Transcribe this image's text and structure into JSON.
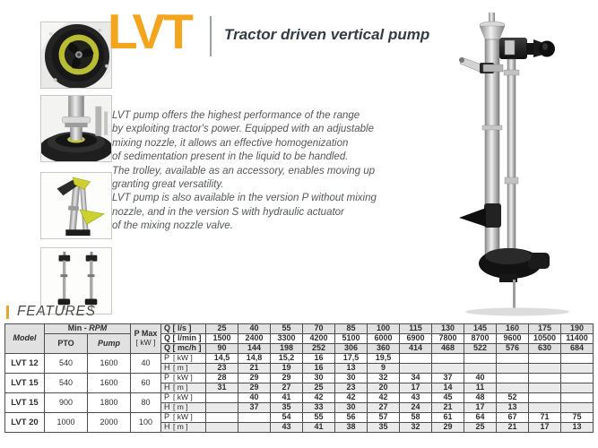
{
  "brand": {
    "logo_text": "LVT",
    "tagline": "Tractor driven vertical pump"
  },
  "description": "LVT pump offers the highest performance of the range\nby exploiting tractor's power. Equipped with an adjustable\nmixing nozzle, it allows an effective homogenization\nof sedimentation present in the liquid to be handled.\nThe trolley, available as an accessory, enables moving up\ngranting great versatility.\nLVT pump is also available in the version P without mixing\nnozzle, and in the version S with hydraulic actuator\nof the mixing nozzle valve.",
  "features": {
    "label": "FEATURES"
  },
  "colors": {
    "accent": "#F2A51D",
    "title": "#333B44",
    "impeller_yellow": "#B9BD33",
    "table_border": "#4D4D4D",
    "header_bg": "#E1E1E1",
    "alt_row_bg": "#EAEAEA"
  },
  "thumbnails": [
    {
      "name": "impeller-closeup-photo"
    },
    {
      "name": "pump-head-closeup-photo"
    },
    {
      "name": "mixer-nozzle-columns-photo"
    },
    {
      "name": "pump-pair-photo"
    }
  ],
  "product_photo": {
    "name": "lvt-vertical-pump-photo"
  },
  "table": {
    "headers": {
      "model": "Model",
      "min_label": "Min -",
      "rpm_label": "RPM",
      "pto": "PTO",
      "pump": "Pump",
      "pmax": "P Max",
      "pmax_unit": "[ kW ]"
    },
    "q_rows": [
      {
        "label": "Q [ l/s ]",
        "values": [
          "25",
          "40",
          "55",
          "70",
          "85",
          "100",
          "115",
          "130",
          "145",
          "160",
          "175",
          "190"
        ]
      },
      {
        "label": "Q [ l/min ]",
        "values": [
          "1500",
          "2400",
          "3300",
          "4200",
          "5100",
          "6000",
          "6900",
          "7800",
          "8700",
          "9600",
          "10500",
          "11400"
        ]
      },
      {
        "label": "Q [ mc/h ]",
        "values": [
          "90",
          "144",
          "198",
          "252",
          "306",
          "360",
          "414",
          "468",
          "522",
          "576",
          "630",
          "684"
        ]
      }
    ],
    "p_sym": "P",
    "p_unit": "[ kW ]",
    "h_sym": "H",
    "h_unit": "[ m ]",
    "models": [
      {
        "model": "LVT 12",
        "pto": "540",
        "pump": "1600",
        "pmax": "40",
        "p": [
          "14,5",
          "14,8",
          "15,2",
          "16",
          "17,5",
          "19,5",
          "",
          "",
          "",
          "",
          "",
          ""
        ],
        "h": [
          "23",
          "21",
          "19",
          "16",
          "13",
          "9",
          "",
          "",
          "",
          "",
          "",
          ""
        ]
      },
      {
        "model": "LVT 15",
        "pto": "540",
        "pump": "1600",
        "pmax": "60",
        "p": [
          "28",
          "29",
          "29",
          "30",
          "30",
          "32",
          "34",
          "37",
          "40",
          "",
          "",
          ""
        ],
        "h": [
          "31",
          "29",
          "27",
          "25",
          "23",
          "20",
          "17",
          "14",
          "11",
          "",
          "",
          ""
        ]
      },
      {
        "model": "LVT 15",
        "pto": "900",
        "pump": "1800",
        "pmax": "80",
        "p": [
          "",
          "40",
          "41",
          "42",
          "42",
          "42",
          "43",
          "45",
          "48",
          "52",
          "",
          ""
        ],
        "h": [
          "",
          "37",
          "35",
          "33",
          "30",
          "27",
          "24",
          "21",
          "17",
          "13",
          "",
          ""
        ]
      },
      {
        "model": "LVT 20",
        "pto": "1000",
        "pump": "2000",
        "pmax": "100",
        "p": [
          "",
          "",
          "54",
          "55",
          "56",
          "57",
          "58",
          "61",
          "64",
          "67",
          "71",
          "75"
        ],
        "h": [
          "",
          "",
          "43",
          "41",
          "38",
          "35",
          "32",
          "29",
          "25",
          "21",
          "17",
          "13"
        ]
      }
    ]
  }
}
